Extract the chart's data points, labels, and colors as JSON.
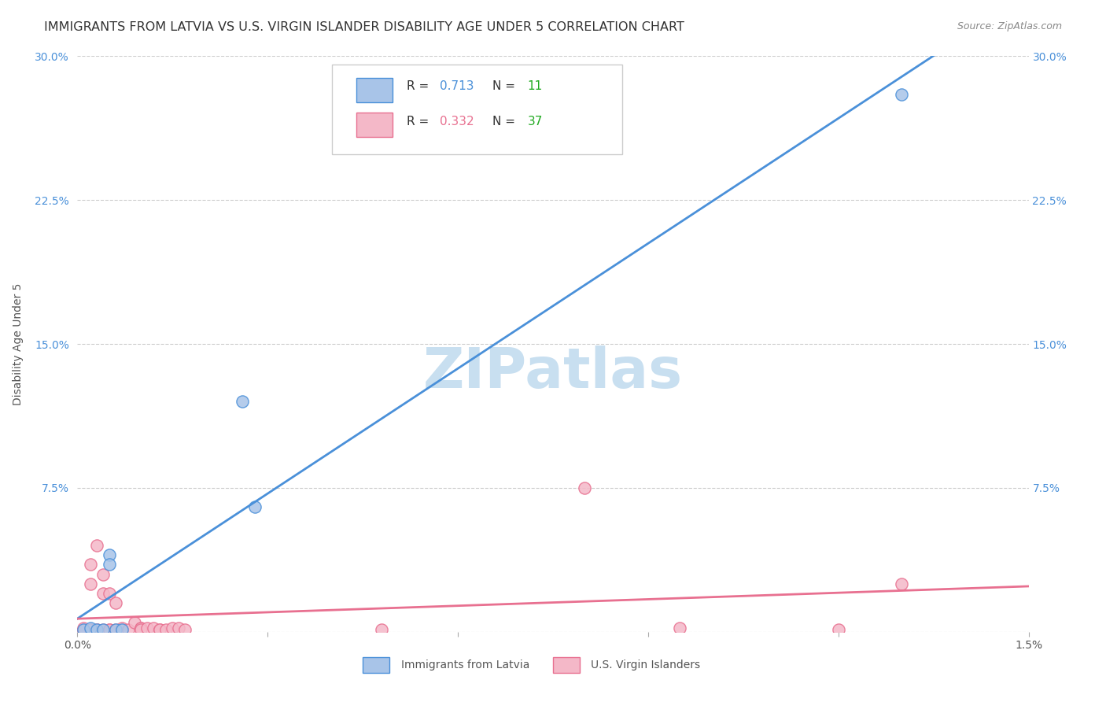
{
  "title": "IMMIGRANTS FROM LATVIA VS U.S. VIRGIN ISLANDER DISABILITY AGE UNDER 5 CORRELATION CHART",
  "source": "Source: ZipAtlas.com",
  "xlabel": "",
  "ylabel": "Disability Age Under 5",
  "watermark": "ZIPatlas",
  "legend_blue_r": "0.713",
  "legend_blue_n": "11",
  "legend_pink_r": "0.332",
  "legend_pink_n": "37",
  "legend_blue_label": "Immigrants from Latvia",
  "legend_pink_label": "U.S. Virgin Islanders",
  "xlim": [
    0.0,
    0.015
  ],
  "ylim": [
    0.0,
    0.3
  ],
  "xticks": [
    0.0,
    0.003,
    0.006,
    0.009,
    0.012,
    0.015
  ],
  "xtick_labels": [
    "0.0%",
    "",
    "",
    "",
    "",
    "1.5%"
  ],
  "yticks_left": [
    0.0,
    0.075,
    0.15,
    0.225,
    0.3
  ],
  "ytick_labels_left": [
    "",
    "7.5%",
    "15.0%",
    "22.5%",
    "30.0%"
  ],
  "blue_x": [
    0.0001,
    0.0002,
    0.0003,
    0.0004,
    0.0005,
    0.0005,
    0.0006,
    0.0007,
    0.0026,
    0.0028,
    0.013
  ],
  "blue_y": [
    0.001,
    0.002,
    0.001,
    0.001,
    0.04,
    0.035,
    0.001,
    0.001,
    0.12,
    0.065,
    0.28
  ],
  "pink_x": [
    0.0001,
    0.0001,
    0.0001,
    0.0002,
    0.0002,
    0.0002,
    0.0003,
    0.0003,
    0.0003,
    0.0004,
    0.0004,
    0.0004,
    0.0005,
    0.0005,
    0.0005,
    0.0006,
    0.0006,
    0.0007,
    0.0007,
    0.0008,
    0.0009,
    0.001,
    0.001,
    0.001,
    0.0011,
    0.0012,
    0.0013,
    0.0013,
    0.0014,
    0.0015,
    0.0016,
    0.0017,
    0.0048,
    0.008,
    0.0095,
    0.012,
    0.013
  ],
  "pink_y": [
    0.001,
    0.001,
    0.002,
    0.001,
    0.025,
    0.035,
    0.001,
    0.001,
    0.045,
    0.001,
    0.02,
    0.03,
    0.02,
    0.001,
    0.001,
    0.001,
    0.015,
    0.001,
    0.002,
    0.001,
    0.005,
    0.002,
    0.002,
    0.001,
    0.002,
    0.002,
    0.001,
    0.001,
    0.001,
    0.002,
    0.002,
    0.001,
    0.001,
    0.075,
    0.002,
    0.001,
    0.025
  ],
  "blue_color": "#a8c4e8",
  "pink_color": "#f4b8c8",
  "blue_line_color": "#4a90d9",
  "pink_line_color": "#e87090",
  "title_color": "#333333",
  "axis_color": "#4a90d9",
  "grid_color": "#cccccc",
  "watermark_color": "#c8dff0",
  "bg_color": "#ffffff",
  "title_fontsize": 11.5,
  "source_fontsize": 9,
  "axis_label_fontsize": 10,
  "green_color": "#22aa22"
}
